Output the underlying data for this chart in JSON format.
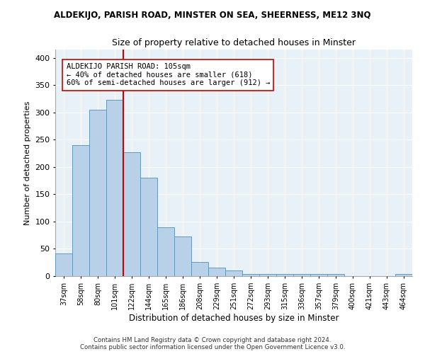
{
  "title": "ALDEKIJO, PARISH ROAD, MINSTER ON SEA, SHEERNESS, ME12 3NQ",
  "subtitle": "Size of property relative to detached houses in Minster",
  "xlabel": "Distribution of detached houses by size in Minster",
  "ylabel": "Number of detached properties",
  "footer_line1": "Contains HM Land Registry data © Crown copyright and database right 2024.",
  "footer_line2": "Contains public sector information licensed under the Open Government Licence v3.0.",
  "categories": [
    "37sqm",
    "58sqm",
    "80sqm",
    "101sqm",
    "122sqm",
    "144sqm",
    "165sqm",
    "186sqm",
    "208sqm",
    "229sqm",
    "251sqm",
    "272sqm",
    "293sqm",
    "315sqm",
    "336sqm",
    "357sqm",
    "379sqm",
    "400sqm",
    "421sqm",
    "443sqm",
    "464sqm"
  ],
  "values": [
    42,
    240,
    305,
    323,
    227,
    180,
    90,
    72,
    26,
    15,
    10,
    4,
    4,
    4,
    4,
    4,
    4,
    0,
    0,
    0,
    4
  ],
  "bar_color": "#b8d0e8",
  "bar_edge_color": "#6699bb",
  "background_color": "#e8f0f8",
  "grid_color": "#ffffff",
  "vline_color": "#cc0000",
  "annotation_text": "ALDEKIJO PARISH ROAD: 105sqm\n← 40% of detached houses are smaller (618)\n60% of semi-detached houses are larger (912) →",
  "annotation_box_color": "#ffffff",
  "annotation_box_edge": "#cc0000",
  "ylim": [
    0,
    415
  ],
  "yticks": [
    0,
    50,
    100,
    150,
    200,
    250,
    300,
    350,
    400
  ]
}
